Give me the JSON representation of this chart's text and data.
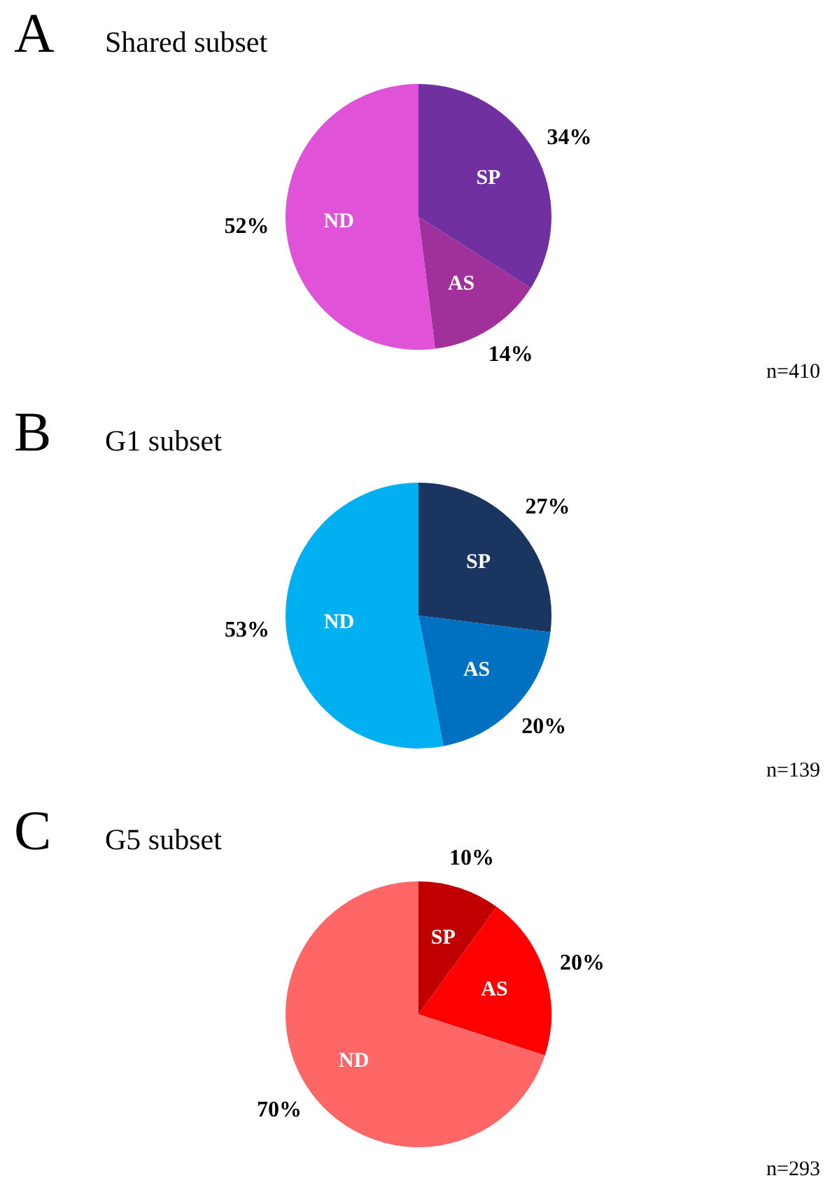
{
  "chart_data": [
    {
      "type": "pie",
      "title": "Shared subset",
      "categories": [
        "SP",
        "AS",
        "ND"
      ],
      "values": [
        34,
        14,
        52
      ],
      "colors": [
        "#7030a0",
        "#a0309a",
        "#e052d8"
      ],
      "value_labels": [
        "34%",
        "14%",
        "52%"
      ],
      "legend": false,
      "annotations": [
        "A",
        "n=410"
      ]
    },
    {
      "type": "pie",
      "title": "G1 subset",
      "categories": [
        "SP",
        "AS",
        "ND"
      ],
      "values": [
        27,
        20,
        53
      ],
      "colors": [
        "#1a3660",
        "#0070c0",
        "#00b0f0"
      ],
      "value_labels": [
        "27%",
        "20%",
        "53%"
      ],
      "legend": false,
      "annotations": [
        "B",
        "n=139"
      ]
    },
    {
      "type": "pie",
      "title": "G5 subset",
      "categories": [
        "SP",
        "AS",
        "ND"
      ],
      "values": [
        10,
        20,
        70
      ],
      "colors": [
        "#c00000",
        "#ff0000",
        "#ff6666"
      ],
      "value_labels": [
        "10%",
        "20%",
        "70%"
      ],
      "legend": false,
      "annotations": [
        "C",
        "n=293"
      ]
    }
  ]
}
